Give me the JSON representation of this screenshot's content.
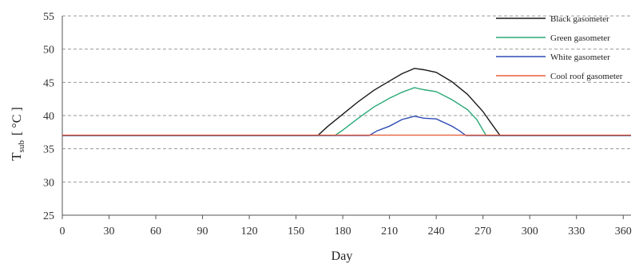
{
  "chart_data": {
    "type": "line",
    "xlabel": "Day",
    "ylabel_main": "T",
    "ylabel_sub": "sub",
    "ylabel_unit": "[ °C ]",
    "xlim": [
      0,
      365
    ],
    "ylim": [
      25,
      55
    ],
    "xticks": [
      0,
      30,
      60,
      90,
      120,
      150,
      180,
      210,
      240,
      270,
      300,
      330,
      360
    ],
    "yticks": [
      25,
      30,
      35,
      40,
      45,
      50,
      55
    ],
    "grid": "horizontal-dashed",
    "legend_position": "top-right",
    "series": [
      {
        "name": "Black gasometer",
        "color": "#1a1a1a",
        "points": [
          [
            0,
            37
          ],
          [
            164,
            37
          ],
          [
            170,
            38.3
          ],
          [
            180,
            40.2
          ],
          [
            190,
            42.1
          ],
          [
            200,
            43.8
          ],
          [
            210,
            45.2
          ],
          [
            218,
            46.3
          ],
          [
            226,
            47.1
          ],
          [
            232,
            46.9
          ],
          [
            240,
            46.5
          ],
          [
            250,
            45.1
          ],
          [
            260,
            43.2
          ],
          [
            270,
            40.6
          ],
          [
            276,
            38.6
          ],
          [
            281,
            37
          ],
          [
            365,
            37
          ]
        ]
      },
      {
        "name": "Green gasometer",
        "color": "#2aa876",
        "points": [
          [
            0,
            37
          ],
          [
            175,
            37
          ],
          [
            180,
            37.8
          ],
          [
            190,
            39.6
          ],
          [
            200,
            41.3
          ],
          [
            210,
            42.6
          ],
          [
            218,
            43.5
          ],
          [
            226,
            44.2
          ],
          [
            232,
            43.9
          ],
          [
            240,
            43.6
          ],
          [
            250,
            42.4
          ],
          [
            260,
            40.9
          ],
          [
            266,
            39.4
          ],
          [
            272,
            37
          ],
          [
            365,
            37
          ]
        ]
      },
      {
        "name": "White gasometer",
        "color": "#2e4bb5",
        "points": [
          [
            0,
            37
          ],
          [
            197,
            37
          ],
          [
            202,
            37.7
          ],
          [
            210,
            38.4
          ],
          [
            218,
            39.4
          ],
          [
            226,
            39.9
          ],
          [
            232,
            39.6
          ],
          [
            240,
            39.5
          ],
          [
            250,
            38.4
          ],
          [
            255,
            37.7
          ],
          [
            259,
            37
          ],
          [
            365,
            37
          ]
        ]
      },
      {
        "name": "Cool roof gasometer",
        "color": "#e8603c",
        "points": [
          [
            0,
            37.05
          ],
          [
            365,
            37.05
          ]
        ]
      }
    ]
  }
}
